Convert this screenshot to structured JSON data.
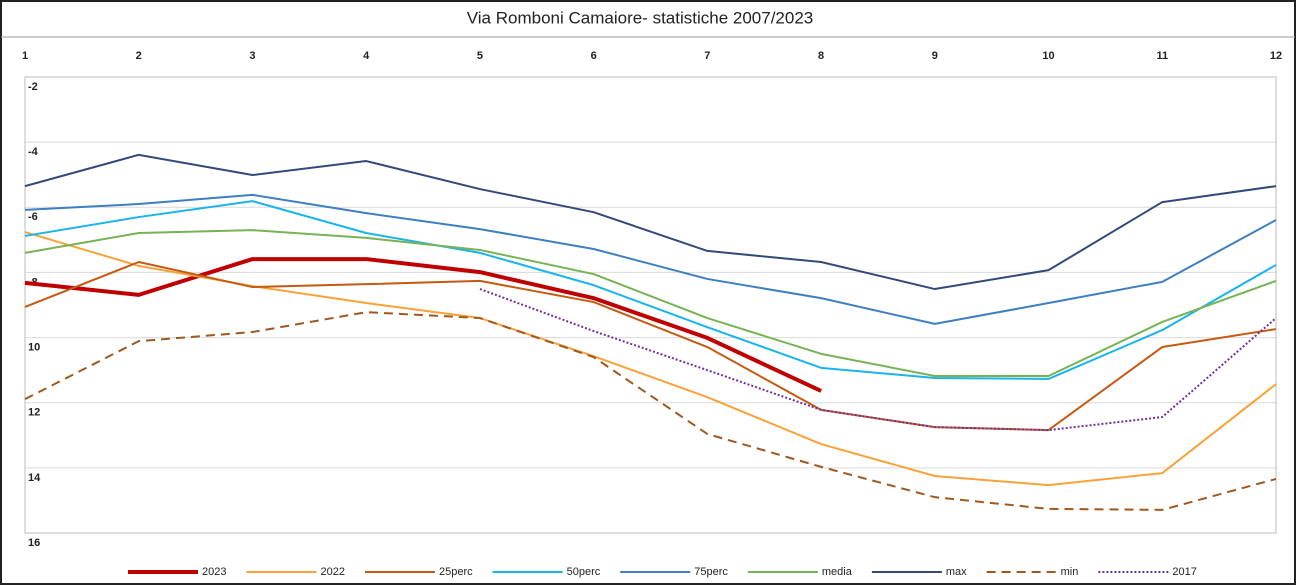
{
  "chart_data": {
    "type": "line",
    "title": "Via Romboni Camaiore- statistiche 2007/2023",
    "categories": [
      "1",
      "2",
      "3",
      "4",
      "5",
      "6",
      "7",
      "8",
      "9",
      "10",
      "11",
      "12"
    ],
    "ylim": [
      -16,
      -2
    ],
    "yticks": [
      -2,
      -4,
      -6,
      -8,
      {
        "value": -10,
        "label": "10"
      },
      {
        "value": -12,
        "label": "12"
      },
      {
        "value": -14,
        "label": "14"
      },
      {
        "value": -16,
        "label": "16"
      }
    ],
    "grid": true,
    "legend": "bottom",
    "series": [
      {
        "name": "2023",
        "color": "#c00000",
        "width": 4,
        "dash": "solid",
        "values": [
          -8.32,
          -8.69,
          -7.59,
          -7.59,
          -7.99,
          -8.79,
          -10.01,
          -11.64,
          null,
          null,
          null,
          null
        ]
      },
      {
        "name": "2022",
        "color": "#f9a23a",
        "width": 2,
        "dash": "solid",
        "values": [
          -6.76,
          -7.8,
          -8.42,
          -8.94,
          -9.4,
          -10.57,
          -11.83,
          -13.27,
          -14.25,
          -14.53,
          -14.16,
          -11.43
        ]
      },
      {
        "name": "25perc",
        "color": "#c55a11",
        "width": 2,
        "dash": "solid",
        "values": [
          -9.06,
          -7.68,
          -8.45,
          -8.36,
          -8.26,
          -8.91,
          -10.29,
          -12.22,
          -12.75,
          -12.84,
          -10.29,
          -9.74
        ]
      },
      {
        "name": "50perc",
        "color": "#19b4ec",
        "width": 2,
        "dash": "solid",
        "values": [
          -6.88,
          -6.3,
          -5.81,
          -6.79,
          -7.4,
          -8.39,
          -9.68,
          -10.93,
          -11.24,
          -11.27,
          -9.77,
          -7.77
        ]
      },
      {
        "name": "75perc",
        "color": "#3d7fc1",
        "width": 2,
        "dash": "solid",
        "values": [
          -6.08,
          -5.9,
          -5.62,
          -6.18,
          -6.67,
          -7.28,
          -8.2,
          -8.79,
          -9.58,
          -8.94,
          -8.29,
          -6.39
        ]
      },
      {
        "name": "media",
        "color": "#77b255",
        "width": 2,
        "dash": "solid",
        "values": [
          -7.4,
          -6.79,
          -6.7,
          -6.94,
          -7.31,
          -8.05,
          -9.4,
          -10.5,
          -11.18,
          -11.18,
          -9.52,
          -8.26
        ]
      },
      {
        "name": "max",
        "color": "#34497a",
        "width": 2,
        "dash": "solid",
        "values": [
          -5.35,
          -4.39,
          -5.01,
          -4.58,
          -5.44,
          -6.15,
          -7.34,
          -7.68,
          -8.51,
          -7.93,
          -5.84,
          -5.35
        ]
      },
      {
        "name": "min",
        "color": "#a0581e",
        "width": 2,
        "dash": "dash",
        "values": [
          -11.89,
          -10.11,
          -9.83,
          -9.22,
          -9.4,
          -10.6,
          -12.96,
          -13.97,
          -14.9,
          -15.26,
          -15.29,
          -14.34
        ]
      },
      {
        "name": "2017",
        "color": "#7030a0",
        "width": 2,
        "dash": "dot",
        "values": [
          null,
          null,
          null,
          null,
          -8.51,
          -9.8,
          -11.0,
          -12.22,
          -12.75,
          -12.84,
          -12.44,
          -9.4
        ]
      }
    ]
  }
}
